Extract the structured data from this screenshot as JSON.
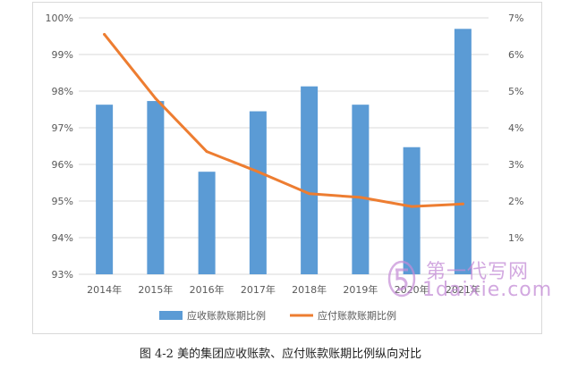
{
  "chart_data": {
    "type": "bar",
    "categories": [
      "2014年",
      "2015年",
      "2016年",
      "2017年",
      "2018年",
      "2019年",
      "2020年",
      "2021年"
    ],
    "series": [
      {
        "name": "应收账款账期比例",
        "type": "bar",
        "axis": "left",
        "values": [
          97.63,
          97.73,
          95.8,
          97.45,
          98.13,
          97.63,
          96.47,
          99.7
        ]
      },
      {
        "name": "应付账款账期比例",
        "type": "line",
        "axis": "right",
        "values": [
          6.55,
          4.8,
          3.35,
          2.8,
          2.2,
          2.1,
          1.85,
          1.92
        ]
      }
    ],
    "left_ticks": [
      "93%",
      "94%",
      "95%",
      "96%",
      "97%",
      "98%",
      "99%",
      "100%"
    ],
    "right_ticks": [
      "1%",
      "2%",
      "3%",
      "4%",
      "5%",
      "6%",
      "7%"
    ],
    "ylim_left": [
      93,
      100
    ],
    "ylim_right": [
      0,
      7
    ],
    "grid": true,
    "legend_position": "bottom",
    "colors": {
      "bar": "#5b9bd5",
      "line": "#ed7d31",
      "grid": "#d9d9d9",
      "text": "#595959"
    }
  },
  "caption": "图 4-2  美的集团应收账款、应付账款账期比例纵向对比",
  "watermark": {
    "top": "第一代写网",
    "bottom": "1daixie.com"
  }
}
